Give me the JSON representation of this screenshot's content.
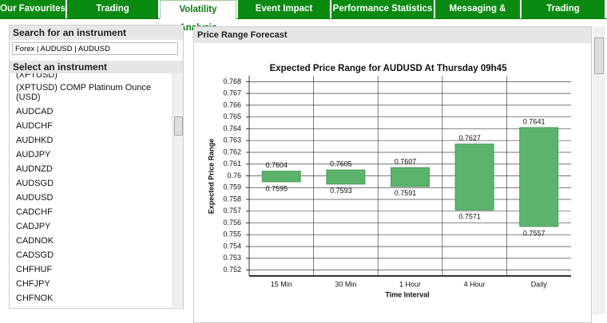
{
  "tabs": [
    "Our Favourites",
    "Trading Opportunities",
    "Volatility Analysis",
    "Event Impact Analysis",
    "Performance Statistics",
    "Messaging & Alerts",
    "Trading Community"
  ],
  "sidebar": {
    "search_title": "Search for an instrument",
    "search_value": "Forex  | AUDUSD | AUDUSD",
    "select_title": "Select an instrument",
    "instruments": [
      "(XPTUSD)",
      "(XPTUSD) COMP Platinum Ounce (USD)",
      "AUDCAD",
      "AUDCHF",
      "AUDHKD",
      "AUDJPY",
      "AUDNZD",
      "AUDSGD",
      "AUDUSD",
      "CADCHF",
      "CADJPY",
      "CADNOK",
      "CADSGD",
      "CHFHUF",
      "CHFJPY",
      "CHFNOK"
    ]
  },
  "panel": {
    "title": "Price Range Forecast"
  },
  "chart_data": {
    "type": "range-bar",
    "title": "Expected Price Range for AUDUSD At  Thursday 09h45",
    "x_label": "Time Interval",
    "y_label": "Expected Price Range",
    "categories": [
      "15 Min",
      "30 Min",
      "1 Hour",
      "4 Hour",
      "Daily"
    ],
    "high": [
      0.7604,
      0.7605,
      0.7607,
      0.7627,
      0.7641
    ],
    "low": [
      0.7595,
      0.7593,
      0.7591,
      0.7571,
      0.7557
    ],
    "color": "#5cb46c",
    "ylim": [
      0.7515,
      0.7685
    ],
    "yticks": [
      0.752,
      0.753,
      0.754,
      0.755,
      0.756,
      0.757,
      0.758,
      0.759,
      0.76,
      0.761,
      0.762,
      0.763,
      0.764,
      0.765,
      0.766,
      0.767,
      0.768
    ],
    "grid": true
  }
}
